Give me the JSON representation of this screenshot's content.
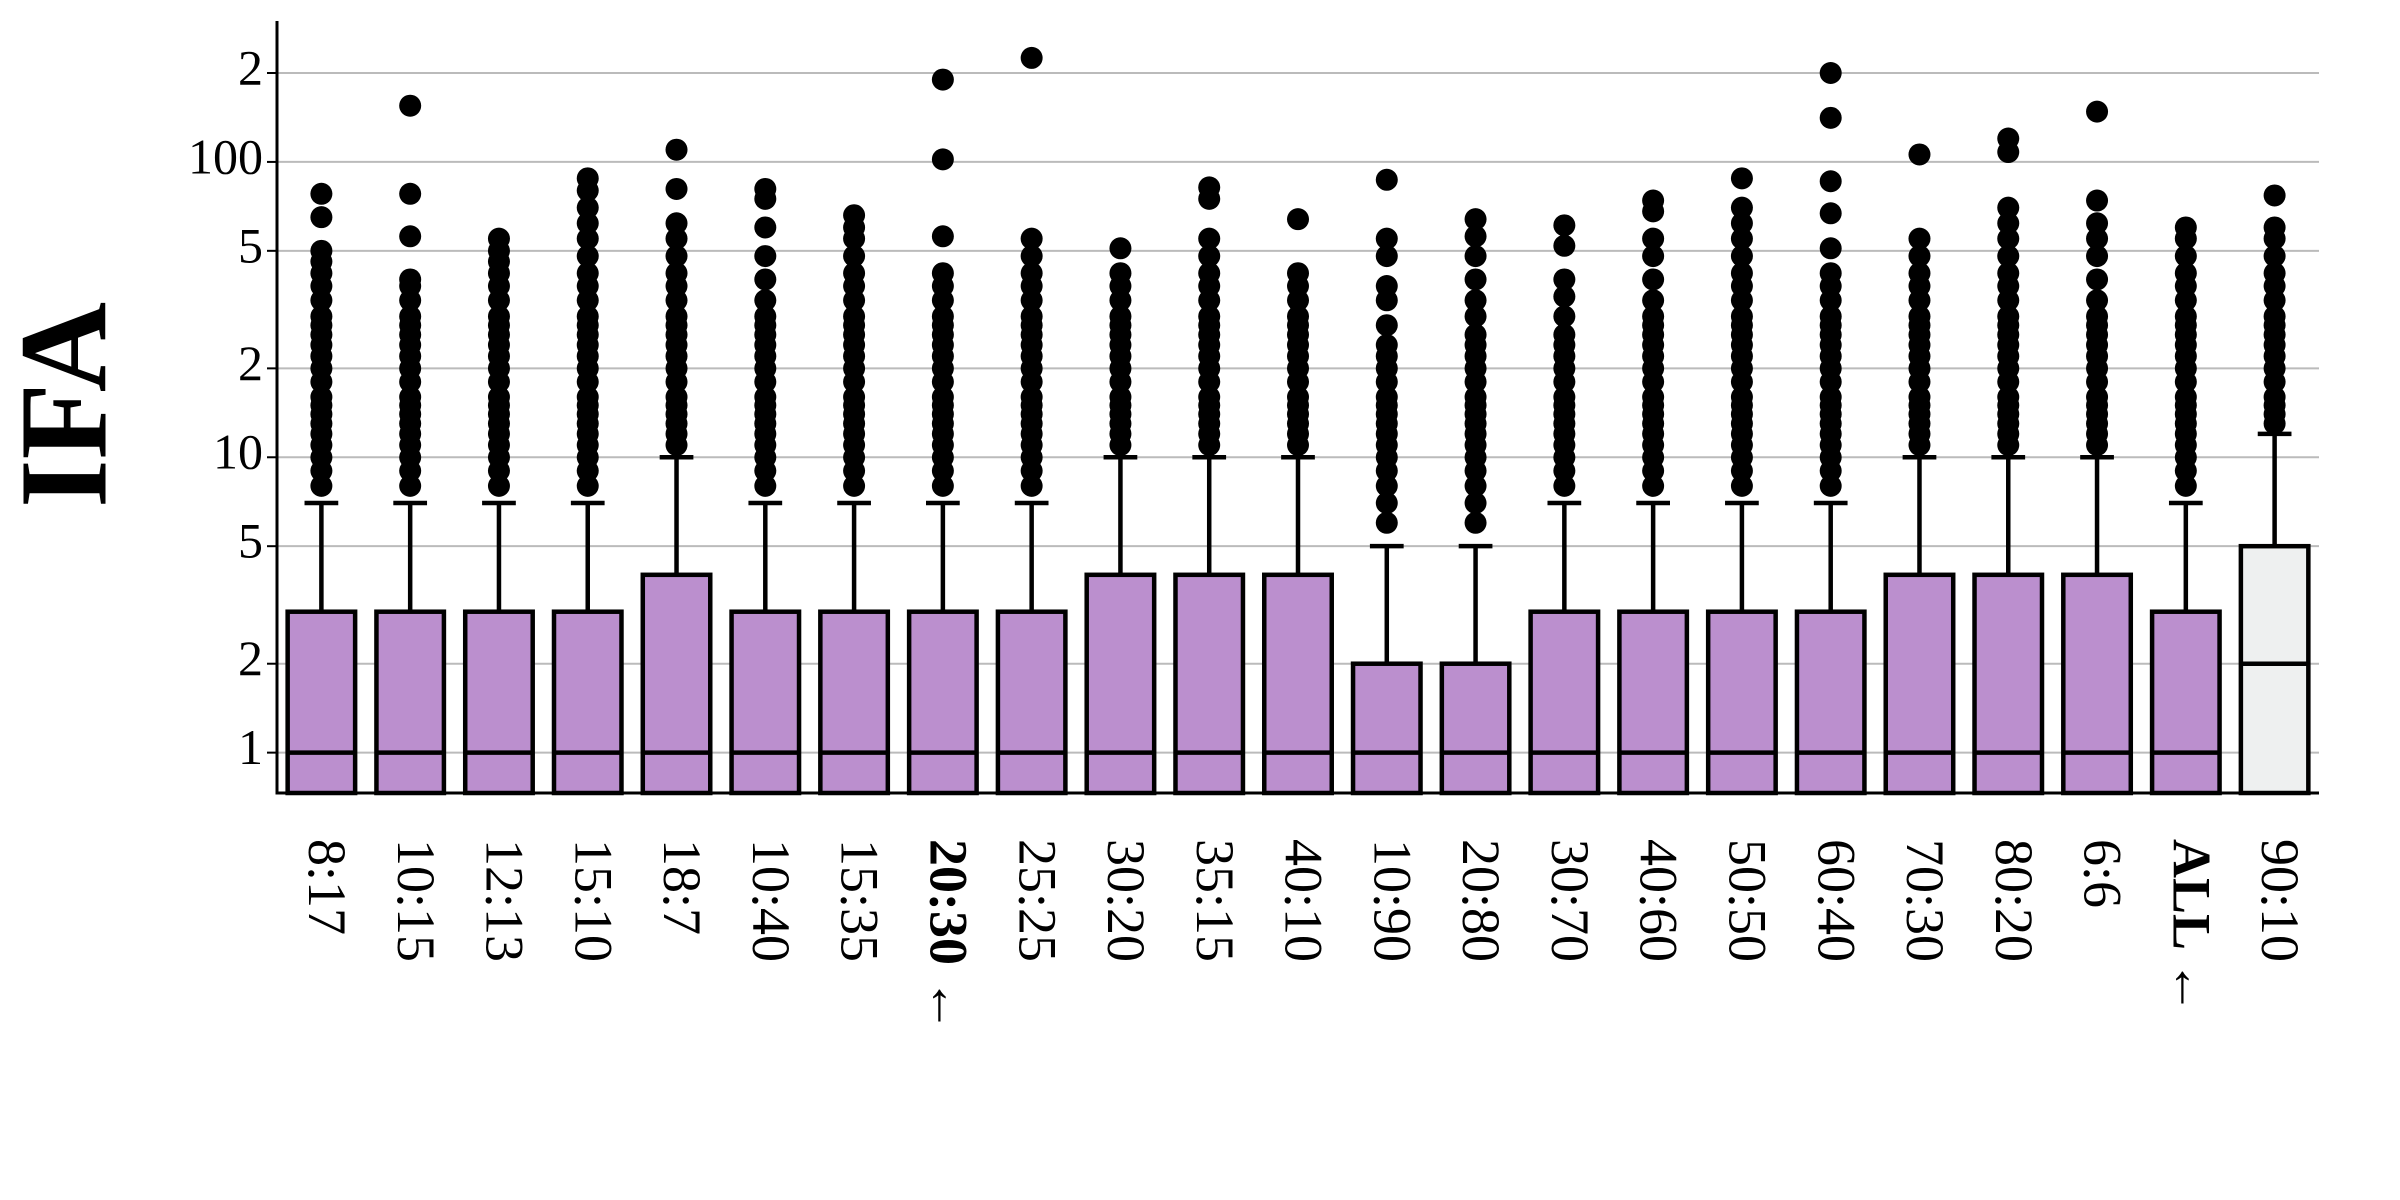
{
  "chart_data": {
    "type": "box",
    "y_label": "IFA",
    "y_scale": "log",
    "grid": true,
    "ylim": [
      0.73,
      300
    ],
    "yticks": [
      1,
      2,
      5,
      10,
      {
        "value": 20,
        "label": "2"
      },
      {
        "value": 50,
        "label": "5"
      },
      100,
      {
        "value": 200,
        "label": "2"
      }
    ],
    "categories": [
      "8:17",
      "10:15",
      "12:13",
      "15:10",
      "18:7",
      "10:40",
      "15:35",
      "20:30 ←",
      "25:25",
      "30:20",
      "35:15",
      "40:10",
      "10:90",
      "20:80",
      "30:70",
      "40:60",
      "50:50",
      "60:40",
      "70:30",
      "80:20",
      "6:6",
      "ALL ←",
      "90:10"
    ],
    "bold": [
      false,
      false,
      false,
      false,
      false,
      false,
      false,
      true,
      false,
      false,
      false,
      false,
      false,
      false,
      false,
      false,
      false,
      false,
      false,
      false,
      false,
      true,
      false
    ],
    "colors": [
      "#bb8fce",
      "#bb8fce",
      "#bb8fce",
      "#bb8fce",
      "#bb8fce",
      "#bb8fce",
      "#bb8fce",
      "#bb8fce",
      "#bb8fce",
      "#bb8fce",
      "#bb8fce",
      "#bb8fce",
      "#bb8fce",
      "#bb8fce",
      "#bb8fce",
      "#bb8fce",
      "#bb8fce",
      "#bb8fce",
      "#bb8fce",
      "#bb8fce",
      "#bb8fce",
      "#bb8fce",
      "#eef0f0"
    ],
    "boxes": [
      {
        "whislo": 0,
        "q1": 0,
        "med": 1,
        "q3": 3,
        "whishi": 7,
        "fliers": [
          8,
          9,
          10,
          11,
          12,
          13,
          14,
          15,
          16,
          18,
          20,
          22,
          24,
          26,
          28,
          30,
          34,
          38,
          42,
          46,
          50,
          65,
          78
        ]
      },
      {
        "whislo": 0,
        "q1": 0,
        "med": 1,
        "q3": 3,
        "whishi": 7,
        "fliers": [
          8,
          9,
          10,
          11,
          12,
          13,
          14,
          15,
          16,
          18,
          20,
          22,
          24,
          26,
          28,
          30,
          34,
          38,
          40,
          56,
          78,
          155
        ]
      },
      {
        "whislo": 0,
        "q1": 0,
        "med": 1,
        "q3": 3,
        "whishi": 7,
        "fliers": [
          8,
          9,
          10,
          11,
          12,
          13,
          14,
          15,
          16,
          18,
          20,
          22,
          24,
          26,
          28,
          30,
          34,
          38,
          42,
          46,
          50,
          55
        ]
      },
      {
        "whislo": 0,
        "q1": 0,
        "med": 1,
        "q3": 3,
        "whishi": 7,
        "fliers": [
          8,
          9,
          10,
          11,
          12,
          13,
          14,
          15,
          16,
          18,
          20,
          22,
          24,
          26,
          28,
          30,
          34,
          38,
          42,
          48,
          55,
          62,
          70,
          80,
          88
        ]
      },
      {
        "whislo": 0,
        "q1": 0,
        "med": 1,
        "q3": 4,
        "whishi": 10,
        "fliers": [
          11,
          12,
          13,
          14,
          15,
          16,
          18,
          20,
          22,
          24,
          26,
          28,
          30,
          34,
          38,
          42,
          48,
          55,
          62,
          81,
          110
        ]
      },
      {
        "whislo": 0,
        "q1": 0,
        "med": 1,
        "q3": 3,
        "whishi": 7,
        "fliers": [
          8,
          9,
          10,
          11,
          12,
          13,
          14,
          15,
          16,
          18,
          20,
          22,
          24,
          26,
          28,
          30,
          34,
          40,
          48,
          60,
          75,
          81
        ]
      },
      {
        "whislo": 0,
        "q1": 0,
        "med": 1,
        "q3": 3,
        "whishi": 7,
        "fliers": [
          8,
          9,
          10,
          11,
          12,
          13,
          14,
          15,
          16,
          18,
          20,
          22,
          24,
          26,
          28,
          30,
          34,
          38,
          42,
          48,
          55,
          60,
          66
        ]
      },
      {
        "whislo": 0,
        "q1": 0,
        "med": 1,
        "q3": 3,
        "whishi": 7,
        "fliers": [
          8,
          9,
          10,
          11,
          12,
          13,
          14,
          15,
          16,
          18,
          20,
          22,
          24,
          26,
          28,
          30,
          34,
          38,
          42,
          56,
          102,
          190
        ]
      },
      {
        "whislo": 0,
        "q1": 0,
        "med": 1,
        "q3": 3,
        "whishi": 7,
        "fliers": [
          8,
          9,
          10,
          11,
          12,
          13,
          14,
          15,
          16,
          18,
          20,
          22,
          24,
          26,
          28,
          30,
          34,
          38,
          42,
          48,
          55,
          225
        ]
      },
      {
        "whislo": 0,
        "q1": 0,
        "med": 1,
        "q3": 4,
        "whishi": 10,
        "fliers": [
          11,
          12,
          13,
          14,
          15,
          16,
          18,
          20,
          22,
          24,
          26,
          28,
          30,
          34,
          38,
          42,
          51
        ]
      },
      {
        "whislo": 0,
        "q1": 0,
        "med": 1,
        "q3": 4,
        "whishi": 10,
        "fliers": [
          11,
          12,
          13,
          14,
          15,
          16,
          18,
          20,
          22,
          24,
          26,
          28,
          30,
          34,
          38,
          42,
          48,
          55,
          75,
          82
        ]
      },
      {
        "whislo": 0,
        "q1": 0,
        "med": 1,
        "q3": 4,
        "whishi": 10,
        "fliers": [
          11,
          12,
          13,
          14,
          15,
          16,
          18,
          20,
          22,
          24,
          26,
          28,
          30,
          34,
          38,
          42,
          64
        ]
      },
      {
        "whislo": 0,
        "q1": 0,
        "med": 1,
        "q3": 2,
        "whishi": 5,
        "fliers": [
          6,
          7,
          8,
          9,
          10,
          11,
          12,
          13,
          14,
          15,
          16,
          18,
          20,
          22,
          24,
          28,
          34,
          38,
          48,
          55,
          87
        ]
      },
      {
        "whislo": 0,
        "q1": 0,
        "med": 1,
        "q3": 2,
        "whishi": 5,
        "fliers": [
          6,
          7,
          8,
          9,
          10,
          11,
          12,
          13,
          14,
          15,
          16,
          18,
          20,
          22,
          24,
          26,
          30,
          34,
          40,
          48,
          56,
          64
        ]
      },
      {
        "whislo": 0,
        "q1": 0,
        "med": 1,
        "q3": 3,
        "whishi": 7,
        "fliers": [
          8,
          9,
          10,
          11,
          12,
          13,
          14,
          15,
          16,
          18,
          20,
          22,
          24,
          26,
          30,
          35,
          40,
          52,
          61
        ]
      },
      {
        "whislo": 0,
        "q1": 0,
        "med": 1,
        "q3": 3,
        "whishi": 7,
        "fliers": [
          8,
          9,
          10,
          11,
          12,
          13,
          14,
          15,
          16,
          18,
          20,
          22,
          24,
          26,
          28,
          30,
          34,
          40,
          48,
          55,
          68,
          74
        ]
      },
      {
        "whislo": 0,
        "q1": 0,
        "med": 1,
        "q3": 3,
        "whishi": 7,
        "fliers": [
          8,
          9,
          10,
          11,
          12,
          13,
          14,
          15,
          16,
          18,
          20,
          22,
          24,
          26,
          28,
          30,
          34,
          38,
          42,
          48,
          55,
          62,
          70,
          88
        ]
      },
      {
        "whislo": 0,
        "q1": 0,
        "med": 1,
        "q3": 3,
        "whishi": 7,
        "fliers": [
          8,
          9,
          10,
          11,
          12,
          13,
          14,
          15,
          16,
          18,
          20,
          22,
          24,
          26,
          28,
          30,
          34,
          38,
          42,
          51,
          67,
          86,
          141,
          200
        ]
      },
      {
        "whislo": 0,
        "q1": 0,
        "med": 1,
        "q3": 4,
        "whishi": 10,
        "fliers": [
          11,
          12,
          13,
          14,
          15,
          16,
          18,
          20,
          22,
          24,
          26,
          28,
          30,
          34,
          38,
          42,
          48,
          55,
          106
        ]
      },
      {
        "whislo": 0,
        "q1": 0,
        "med": 1,
        "q3": 4,
        "whishi": 10,
        "fliers": [
          11,
          12,
          13,
          14,
          15,
          16,
          18,
          20,
          22,
          24,
          26,
          28,
          30,
          34,
          38,
          42,
          48,
          55,
          62,
          70,
          108,
          120
        ]
      },
      {
        "whislo": 0,
        "q1": 0,
        "med": 1,
        "q3": 4,
        "whishi": 10,
        "fliers": [
          11,
          12,
          13,
          14,
          15,
          16,
          18,
          20,
          22,
          24,
          26,
          28,
          30,
          34,
          40,
          48,
          55,
          62,
          74,
          148
        ]
      },
      {
        "whislo": 0,
        "q1": 0,
        "med": 1,
        "q3": 3,
        "whishi": 7,
        "fliers": [
          8,
          9,
          10,
          11,
          12,
          13,
          14,
          15,
          16,
          18,
          20,
          22,
          24,
          26,
          28,
          30,
          34,
          38,
          42,
          48,
          55,
          60
        ]
      },
      {
        "whislo": 0,
        "q1": 0,
        "med": 2,
        "q3": 5,
        "whishi": 12,
        "fliers": [
          13,
          14,
          15,
          16,
          18,
          20,
          22,
          24,
          26,
          28,
          30,
          34,
          38,
          42,
          48,
          55,
          60,
          77
        ]
      }
    ]
  }
}
